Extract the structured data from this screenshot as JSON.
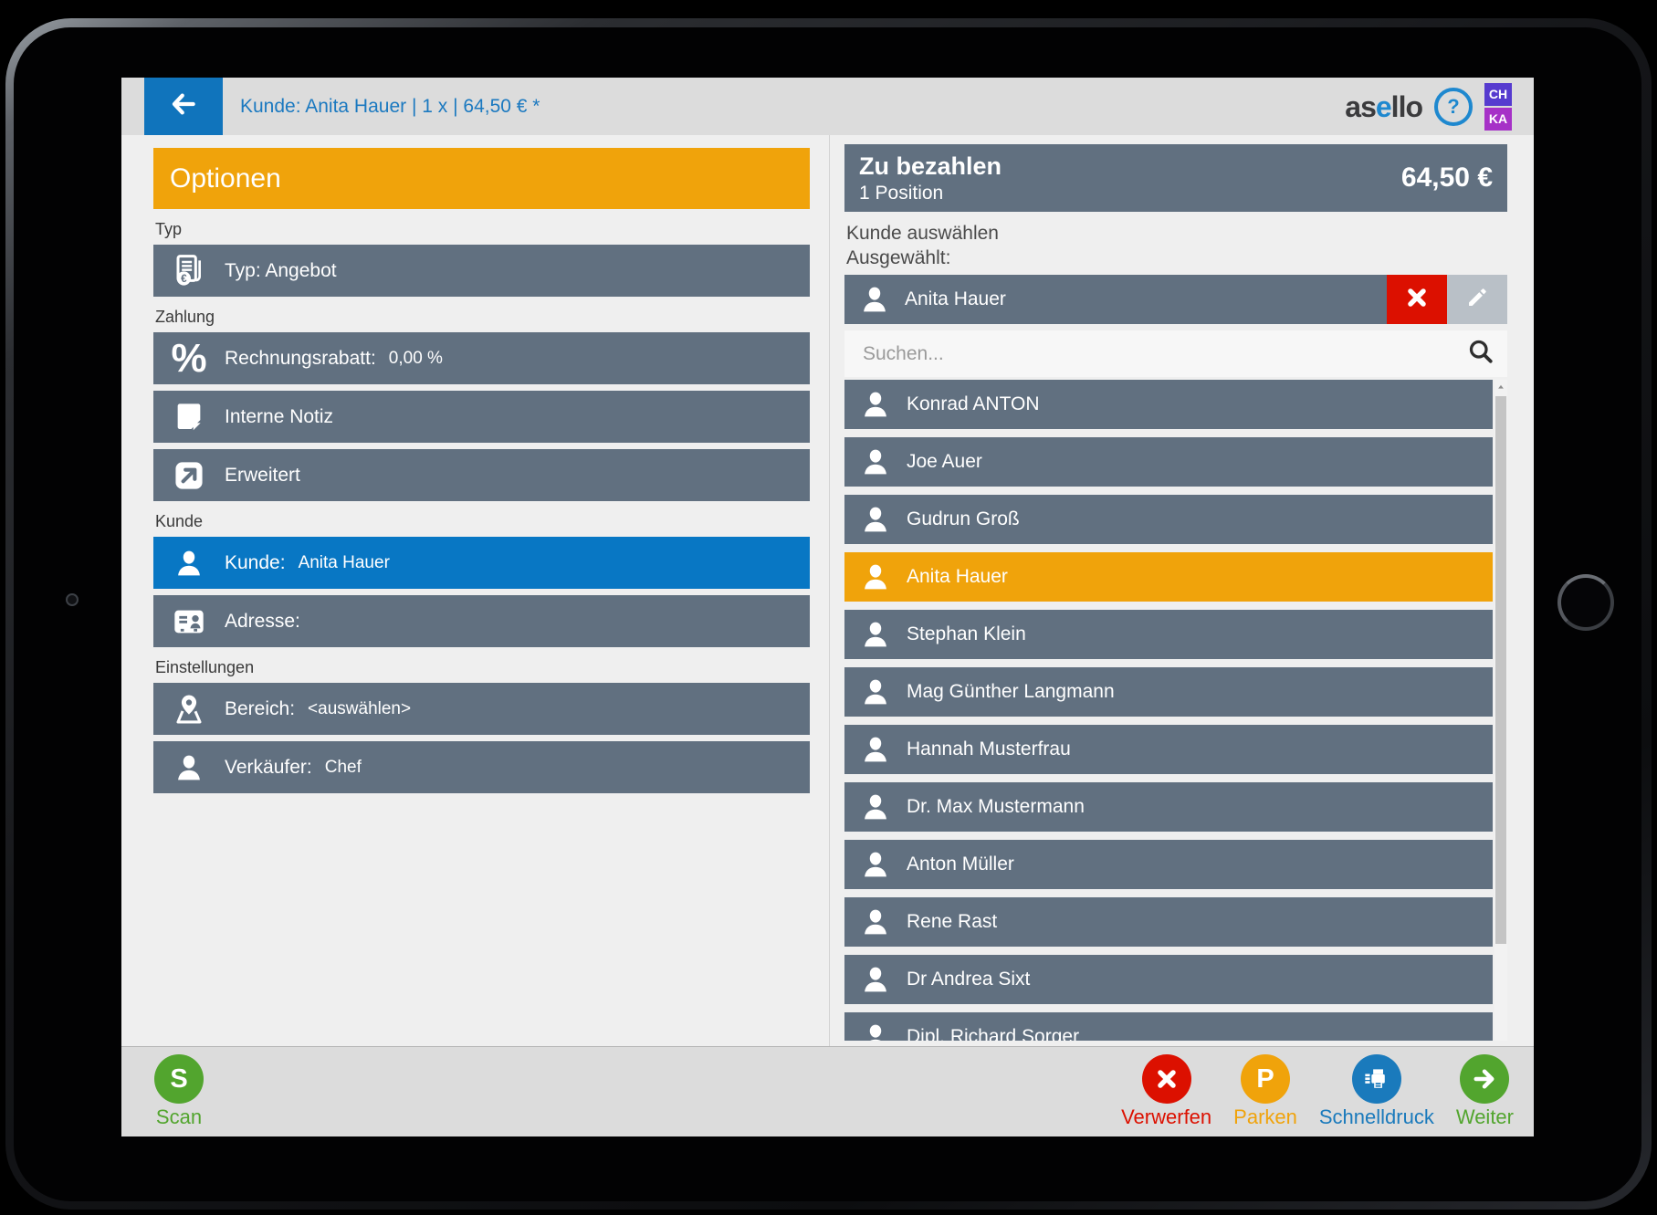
{
  "header": {
    "title": "Kunde: Anita Hauer | 1 x | 64,50 € *"
  },
  "brand": {
    "name_start": "as",
    "name_accent": "e",
    "name_end": "llo",
    "help_glyph": "?",
    "badge_top": "CH",
    "badge_bottom": "KA"
  },
  "left_panel": {
    "title": "Optionen",
    "sections": [
      {
        "label": "Typ",
        "rows": [
          {
            "id": "typ",
            "icon": "document-euro-icon",
            "text": "Typ: Angebot"
          }
        ]
      },
      {
        "label": "Zahlung",
        "rows": [
          {
            "id": "rechnungsrabatt",
            "icon": "percent-icon",
            "text": "Rechnungsrabatt:",
            "value": "0,00 %"
          },
          {
            "id": "interne-notiz",
            "icon": "note-icon",
            "text": "Interne Notiz"
          },
          {
            "id": "erweitert",
            "icon": "external-arrow-icon",
            "text": "Erweitert"
          }
        ]
      },
      {
        "label": "Kunde",
        "rows": [
          {
            "id": "kunde",
            "icon": "person-icon",
            "text": "Kunde:",
            "value": "Anita Hauer",
            "highlight": true
          },
          {
            "id": "adresse",
            "icon": "address-card-icon",
            "text": "Adresse:"
          }
        ]
      },
      {
        "label": "Einstellungen",
        "rows": [
          {
            "id": "bereich",
            "icon": "map-pin-icon",
            "text": "Bereich:",
            "value": "<auswählen>"
          },
          {
            "id": "verkaeufer",
            "icon": "person-icon",
            "text": "Verkäufer:",
            "value": "Chef"
          }
        ]
      }
    ]
  },
  "right_panel": {
    "title": "Zu bezahlen",
    "subtitle": "1 Position",
    "amount": "64,50 €",
    "hint": "Kunde auswählen",
    "selected_label": "Ausgewählt:",
    "selected_customer": "Anita Hauer",
    "search_placeholder": "Suchen...",
    "customers": [
      {
        "name": "Konrad ANTON"
      },
      {
        "name": "Joe Auer"
      },
      {
        "name": "Gudrun Groß"
      },
      {
        "name": "Anita Hauer",
        "selected": true
      },
      {
        "name": "Stephan Klein"
      },
      {
        "name": "Mag Günther Langmann"
      },
      {
        "name": "Hannah Musterfrau"
      },
      {
        "name": "Dr. Max Mustermann"
      },
      {
        "name": "Anton Müller"
      },
      {
        "name": "Rene Rast"
      },
      {
        "name": "Dr Andrea Sixt"
      },
      {
        "name": "Dipl. Richard Sorger"
      }
    ]
  },
  "bottom_bar": {
    "scan": {
      "label": "Scan",
      "glyph": "S",
      "color": "#52a52e"
    },
    "actions": [
      {
        "id": "verwerfen",
        "label": "Verwerfen",
        "icon": "x-icon",
        "color": "#dc1000"
      },
      {
        "id": "parken",
        "label": "Parken",
        "glyph": "P",
        "color": "#f0a30b"
      },
      {
        "id": "schnelldruck",
        "label": "Schnelldruck",
        "icon": "printer-icon",
        "color": "#1a7abc"
      },
      {
        "id": "weiter",
        "label": "Weiter",
        "icon": "arrow-right-icon",
        "color": "#52a52e"
      }
    ]
  },
  "colors": {
    "accent_orange": "#f0a30b",
    "row_slate": "#617080",
    "highlight_blue": "#0877c4",
    "link_blue": "#1b79c0",
    "danger_red": "#dc1000",
    "success_green": "#52a52e"
  }
}
